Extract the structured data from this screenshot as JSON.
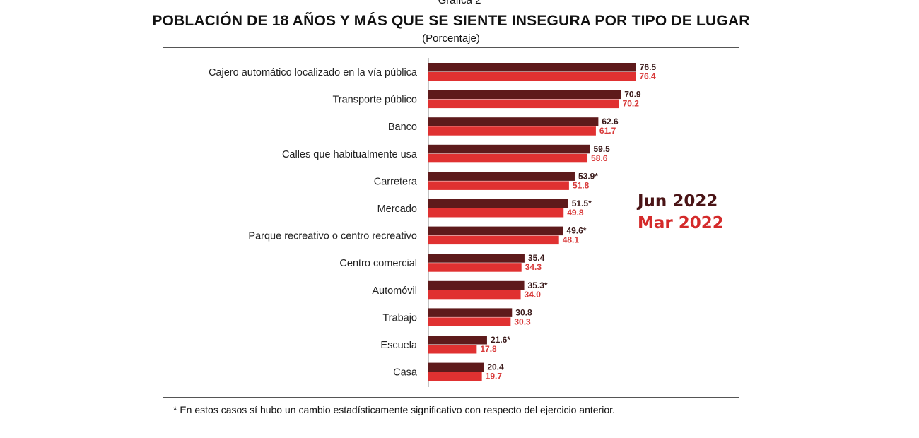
{
  "caption": "Gráfica 2",
  "chart_data": {
    "type": "bar",
    "orientation": "horizontal",
    "title": "POBLACIÓN DE 18 AÑOS Y MÁS QUE SE SIENTE INSEGURA POR TIPO DE LUGAR",
    "subtitle": "(Porcentaje)",
    "categories": [
      "Cajero automático localizado en la vía pública",
      "Transporte público",
      "Banco",
      "Calles que habitualmente usa",
      "Carretera",
      "Mercado",
      "Parque recreativo o centro recreativo",
      "Centro comercial",
      "Automóvil",
      "Trabajo",
      "Escuela",
      "Casa"
    ],
    "series": [
      {
        "name": "Jun 2022",
        "color": "#5e1a1b",
        "values": [
          76.5,
          70.9,
          62.6,
          59.5,
          53.9,
          51.5,
          49.6,
          35.4,
          35.3,
          30.8,
          21.6,
          20.4
        ],
        "labels": [
          "76.5",
          "70.9",
          "62.6",
          "59.5",
          "53.9*",
          "51.5*",
          "49.6*",
          "35.4",
          "35.3*",
          "30.8",
          "21.6*",
          "20.4"
        ]
      },
      {
        "name": "Mar 2022",
        "color": "#e03131",
        "values": [
          76.4,
          70.2,
          61.7,
          58.6,
          51.8,
          49.8,
          48.1,
          34.3,
          34.0,
          30.3,
          17.8,
          19.7
        ],
        "labels": [
          "76.4",
          "70.2",
          "61.7",
          "58.6",
          "51.8",
          "49.8",
          "48.1",
          "34.3",
          "34.0",
          "30.3",
          "17.8",
          "19.7"
        ]
      }
    ],
    "legend_placement": "right",
    "grid": false
  },
  "footnote": "*  En estos casos sí hubo un cambio estadísticamente significativo con respecto del ejercicio anterior."
}
